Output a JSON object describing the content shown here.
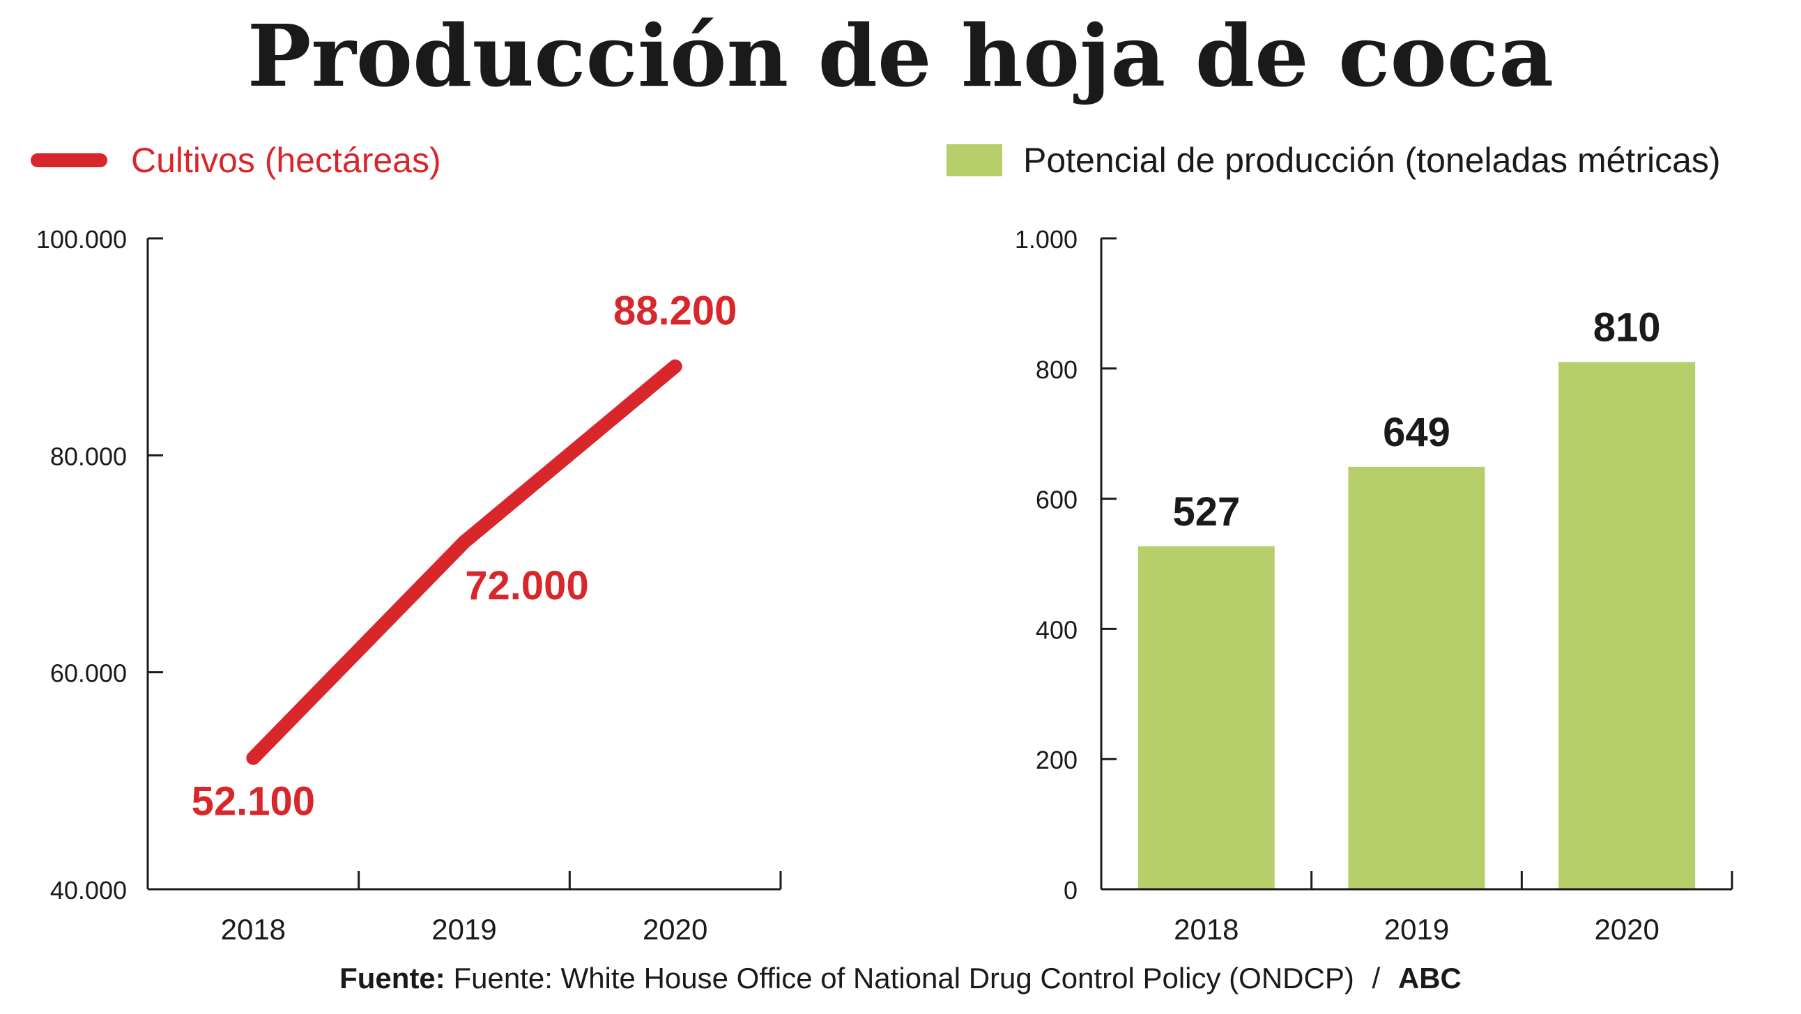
{
  "title": "Producción de hoja de coca",
  "colors": {
    "line": "#d9262b",
    "bar": "#b7cf6a",
    "axis": "#1a1a1a",
    "label_dark": "#1a1a1a"
  },
  "chart_data": [
    {
      "type": "line",
      "legend": "Cultivos (hectáreas)",
      "categories": [
        "2018",
        "2019",
        "2020"
      ],
      "series": [
        {
          "name": "Cultivos (hectáreas)",
          "values": [
            52100,
            72000,
            88200
          ]
        }
      ],
      "data_labels": [
        "52.100",
        "72.000",
        "88.200"
      ],
      "ylim": [
        40000,
        100000
      ],
      "yticks": [
        40000,
        60000,
        80000,
        100000
      ],
      "ytick_labels": [
        "40.000",
        "60.000",
        "80.000",
        "100.000"
      ],
      "grid": false,
      "legend_placement": "top-left"
    },
    {
      "type": "bar",
      "legend": "Potencial de producción (toneladas métricas)",
      "categories": [
        "2018",
        "2019",
        "2020"
      ],
      "series": [
        {
          "name": "Potencial de producción (toneladas métricas)",
          "values": [
            527,
            649,
            810
          ]
        }
      ],
      "data_labels": [
        "527",
        "649",
        "810"
      ],
      "ylim": [
        0,
        1000
      ],
      "yticks": [
        0,
        200,
        400,
        600,
        800,
        1000
      ],
      "ytick_labels": [
        "0",
        "200",
        "400",
        "600",
        "800",
        "1.000"
      ],
      "grid": false,
      "legend_placement": "top-right"
    }
  ],
  "footer": {
    "label": "Fuente:",
    "source": "Fuente: White House Office of National Drug Control Policy (ONDCP)",
    "separator": "/",
    "brand": "ABC"
  }
}
